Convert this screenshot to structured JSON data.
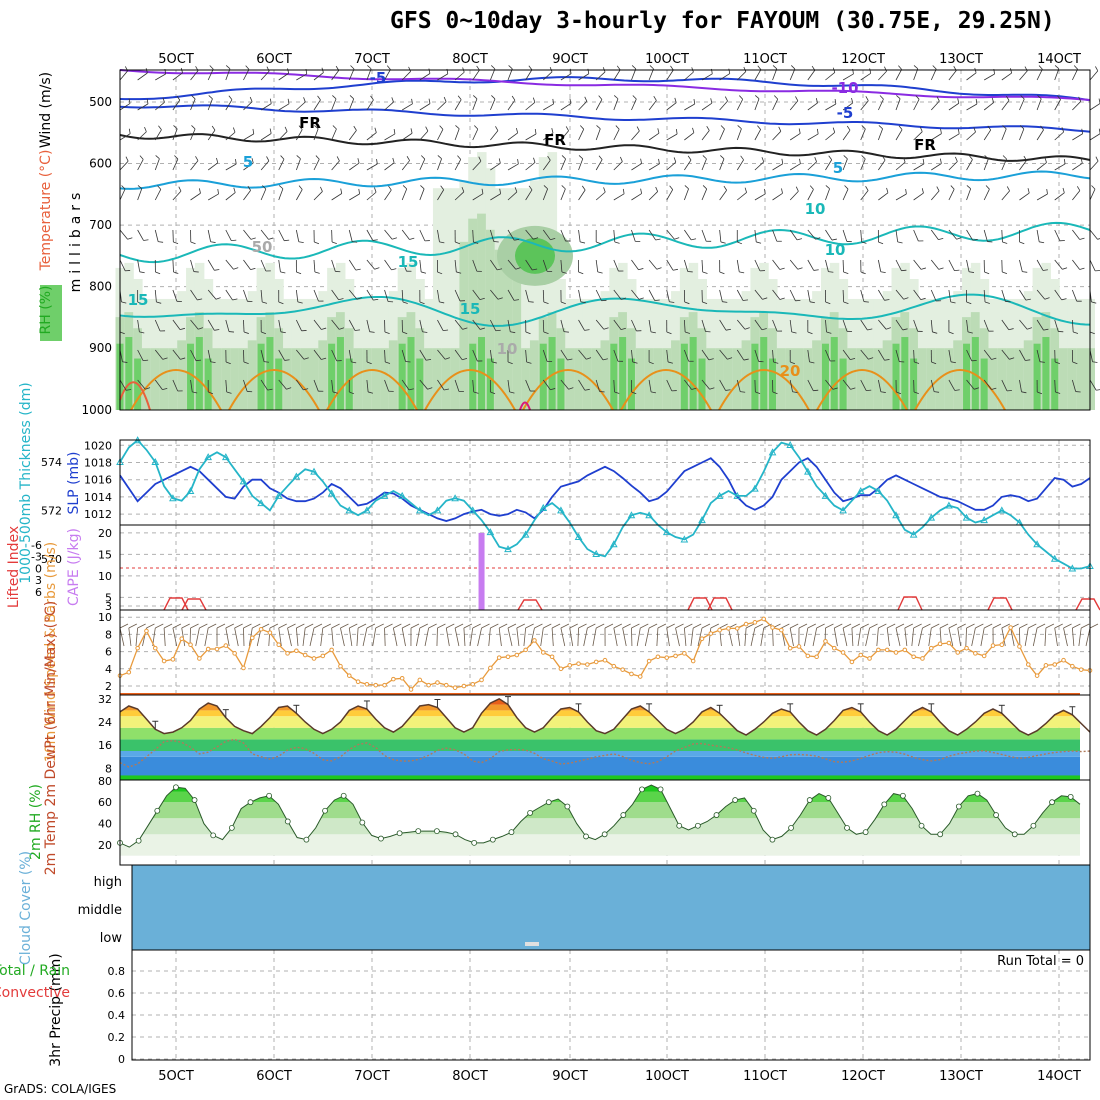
{
  "title": "GFS 0~10day 3-hourly for FAYOUM (30.75E, 29.25N)",
  "credit": "GrADS: COLA/IGES",
  "colors": {
    "wind_axis": "#000000",
    "temperature": "#e8603c",
    "rh": "#22aa22",
    "slp": "#1f3fcf",
    "thickness": "#25b5c8",
    "lifted_index": "#e33b3b",
    "cape": "#c77cf0",
    "wind10": "#e89a3c",
    "cloud": "#6ab0d8",
    "precip_total": "#22aa22",
    "precip_convective": "#e33b3b"
  },
  "chart_data": [
    {
      "panel": "upper-air",
      "type": "contour",
      "ylabel": "millibars",
      "ylabel_parts": [
        {
          "text": "RH (%)",
          "color": "rh"
        },
        {
          "text": "Temperature (°C)",
          "color": "temperature"
        },
        {
          "text": "Wind (m/s)",
          "color": "wind_axis"
        }
      ],
      "y_ticks": [
        "500",
        "600",
        "700",
        "800",
        "900",
        "1000"
      ],
      "x_ticks": [
        "5OCT",
        "6OCT",
        "7OCT",
        "8OCT",
        "9OCT",
        "10OCT",
        "11OCT",
        "12OCT",
        "13OCT",
        "14OCT"
      ],
      "contour_labels": [
        {
          "text": "-5",
          "color": "slp"
        },
        {
          "text": "-10",
          "color": "#8a2be2"
        },
        {
          "text": "-5",
          "color": "slp"
        },
        {
          "text": "FR",
          "color": "#000000"
        },
        {
          "text": "FR",
          "color": "#000000"
        },
        {
          "text": "FR",
          "color": "#000000"
        },
        {
          "text": "5",
          "color": "#1aa0d8"
        },
        {
          "text": "5",
          "color": "#1aa0d8"
        },
        {
          "text": "10",
          "color": "#1ab8b8"
        },
        {
          "text": "10",
          "color": "#1ab8b8"
        },
        {
          "text": "15",
          "color": "#1ab8b8"
        },
        {
          "text": "15",
          "color": "#1ab8b8"
        },
        {
          "text": "15",
          "color": "#1ab8b8"
        },
        {
          "text": "20",
          "color": "#e8901a"
        },
        {
          "text": "10",
          "color": "#aaaaaa"
        },
        {
          "text": "50",
          "color": "#aaaaaa"
        }
      ]
    },
    {
      "panel": "thickness-slp",
      "type": "line",
      "ylabel_left": "1000-500mb Thickness (dm)",
      "ylabel_right": "SLP (mb)",
      "left_ticks": [
        "574",
        "572",
        "570"
      ],
      "right_ticks": [
        "1020",
        "1018",
        "1016",
        "1014",
        "1012"
      ],
      "series": [
        {
          "name": "SLP (mb)",
          "color": "slp",
          "values": [
            1016.5,
            1015,
            1013.5,
            1014.5,
            1015.5,
            1016,
            1016.5,
            1017,
            1017.5,
            1017,
            1016,
            1015,
            1014,
            1013.8,
            1015.2,
            1016,
            1016,
            1015,
            1014.5,
            1013.8,
            1013.5,
            1013.5,
            1013.8,
            1014.5,
            1015.5,
            1015,
            1014,
            1013,
            1013.2,
            1013.8,
            1014.5,
            1014.4,
            1013.8,
            1013,
            1012.5,
            1012,
            1011.5,
            1011.2,
            1011.5,
            1012,
            1012.3,
            1012.5,
            1012,
            1011.8,
            1012,
            1012.5,
            1012.2,
            1011.5,
            1012.5,
            1014,
            1015.2,
            1015.5,
            1015.8,
            1016.5,
            1017,
            1017.5,
            1017,
            1016.2,
            1015.3,
            1014.5,
            1013.5,
            1013.8,
            1014.6,
            1015.8,
            1017,
            1017.5,
            1018,
            1018.5,
            1017.5,
            1016,
            1014,
            1013,
            1012.5,
            1013,
            1014,
            1016,
            1017,
            1018,
            1018.5,
            1017.5,
            1016,
            1014.5,
            1013.5,
            1013.8,
            1014.2,
            1014.2,
            1015,
            1016,
            1016.5,
            1016,
            1015.5,
            1015,
            1014.5,
            1014,
            1013.8,
            1013.5,
            1013,
            1012.5,
            1012.5,
            1013,
            1014,
            1014.2,
            1014,
            1013.5,
            1013.8,
            1015,
            1016.2,
            1016,
            1015.2,
            1015.5,
            1016.2
          ]
        },
        {
          "name": "1000-500mb Thickness (dm)",
          "color": "thickness",
          "values": [
            574,
            574.6,
            574.9,
            574.5,
            574,
            573,
            572.5,
            572.4,
            572.8,
            573.7,
            574.2,
            574.4,
            574.2,
            573.7,
            573.2,
            572.6,
            572.3,
            572,
            572.6,
            573,
            573.4,
            573.7,
            573.6,
            573.2,
            572.7,
            572.2,
            572,
            571.8,
            572,
            572.4,
            572.6,
            572.8,
            572.6,
            572.3,
            572,
            571.8,
            572,
            572.4,
            572.5,
            572.4,
            572,
            571.6,
            571.1,
            570.5,
            570.4,
            570.6,
            571,
            571.6,
            572.1,
            572.3,
            572,
            571.5,
            570.9,
            570.4,
            570.2,
            570.1,
            570.6,
            571.3,
            571.8,
            571.9,
            571.8,
            571.4,
            571.1,
            570.9,
            570.8,
            571,
            571.6,
            572.3,
            572.6,
            572.8,
            572.6,
            572.6,
            572.9,
            573.6,
            574.4,
            574.8,
            574.7,
            574.2,
            573.6,
            573,
            572.6,
            572.2,
            572,
            572.4,
            572.8,
            573,
            572.8,
            572.4,
            571.8,
            571.2,
            571,
            571.3,
            571.7,
            572,
            572.2,
            572.1,
            571.7,
            571.5,
            571.6,
            571.8,
            572,
            571.8,
            571.5,
            571,
            570.6,
            570.3,
            570,
            569.8,
            569.6,
            569.6,
            569.7
          ]
        }
      ]
    },
    {
      "panel": "stability",
      "type": "bar",
      "ylabel_left": "Lifted Index",
      "ylabel_right": "CAPE (J/kg)",
      "left_ticks": [
        "-6",
        "-3",
        "0",
        "3",
        "6"
      ],
      "right_ticks": [
        "20",
        "15",
        "10",
        "5",
        "3"
      ],
      "cape_bars": [
        {
          "x_index": 41,
          "value": 20
        }
      ],
      "lifted_index_series": [
        {
          "name": "Lifted Index",
          "color": "lifted_index",
          "note": "stays near 6 with small dips"
        }
      ]
    },
    {
      "panel": "wind10m",
      "type": "line",
      "ylabel": "10m Wind Speed & Barbs (m/s)",
      "y_ticks": [
        "10",
        "8",
        "6",
        "4",
        "2"
      ],
      "ylim": [
        1,
        10
      ],
      "series": [
        {
          "name": "10m Wind Speed",
          "color": "wind10",
          "values": [
            3.2,
            3.6,
            6.4,
            8.4,
            6.4,
            4.9,
            5.1,
            7.5,
            6.8,
            5.2,
            6.3,
            6.3,
            6.7,
            5.8,
            4.1,
            7.6,
            8.6,
            8.2,
            6.8,
            5.8,
            6.1,
            5.6,
            5.2,
            5.5,
            6.2,
            4.3,
            3.2,
            2.5,
            2.2,
            2.1,
            2.1,
            2.8,
            2.9,
            1.6,
            2.7,
            2.1,
            2.4,
            2.1,
            1.8,
            2,
            2.2,
            2.7,
            4.1,
            5.3,
            5.4,
            5.6,
            6.2,
            7.3,
            5.9,
            5.4,
            4,
            4.4,
            4.6,
            4.5,
            4.8,
            5,
            4.3,
            3.9,
            3.4,
            3.1,
            4.9,
            5.4,
            5.3,
            5.5,
            5.8,
            4.9,
            7.5,
            8.1,
            8.5,
            8.7,
            8.7,
            9.2,
            9.4,
            9.8,
            8.8,
            8.5,
            6.4,
            6.6,
            5.5,
            5.4,
            7.2,
            6.4,
            5.9,
            4.8,
            5.6,
            5.2,
            6.2,
            6.2,
            5.9,
            6.2,
            5.4,
            5.2,
            6.4,
            6.9,
            7,
            5.9,
            6.4,
            5.8,
            5.5,
            6.7,
            6.8,
            8.8,
            6.6,
            4.5,
            3.2,
            4.4,
            4.5,
            5,
            4.3,
            3.9,
            3.8
          ]
        }
      ]
    },
    {
      "panel": "temperature2m",
      "type": "area",
      "ylabel": "2m Temp 2m DewPt (6hr Min/Max) (°C)",
      "y_ticks": [
        "32",
        "24",
        "16",
        "8"
      ],
      "ylim": [
        5,
        34
      ],
      "series": [
        {
          "name": "2m Temp",
          "color": "#5a3a2a",
          "values": [
            27.5,
            29.5,
            28.5,
            25,
            21.5,
            20,
            20.5,
            22,
            24.5,
            28.5,
            30.5,
            29.5,
            25.5,
            22.5,
            21,
            20,
            22.5,
            25.5,
            29,
            29.5,
            27,
            24,
            21.5,
            20,
            21.5,
            24,
            28,
            29.5,
            28.5,
            25,
            22,
            20.5,
            22.5,
            26,
            29.5,
            30,
            29,
            25.5,
            22,
            20.5,
            22,
            27,
            30.5,
            32,
            30,
            25.5,
            22,
            20.5,
            22,
            25.5,
            28.5,
            29,
            27.5,
            24,
            21,
            20,
            21.5,
            25,
            28.5,
            29.5,
            27.5,
            24.5,
            21.5,
            20,
            21.5,
            24,
            27.5,
            29,
            27,
            24,
            21,
            19.5,
            21.5,
            24,
            27,
            28.5,
            27.5,
            24,
            21,
            19.5,
            21.5,
            24.5,
            28,
            29,
            27.5,
            24,
            21,
            19.5,
            21.5,
            24.5,
            27.5,
            29,
            27.5,
            24,
            21,
            19.5,
            21.5,
            24,
            27,
            28.5,
            27,
            24,
            21,
            19.5,
            21,
            23.5,
            26.5,
            28,
            26.5,
            23.5,
            20.5
          ]
        },
        {
          "name": "2m DewPt",
          "color": "#8a6a5a",
          "values": [
            10,
            8.5,
            9.5,
            12,
            14.5,
            17.2,
            17.6,
            17,
            15.3,
            13,
            13.6,
            15.4,
            17.3,
            18,
            16.8,
            13,
            12,
            11.2,
            12.2,
            14.3,
            15.3,
            14.8,
            13.2,
            11,
            10.6,
            12,
            14.5,
            16.2,
            16.8,
            15.2,
            12.4,
            11,
            10.5,
            10.6,
            11.2,
            12.5,
            14.2,
            15,
            14.4,
            13,
            10.5,
            10,
            11.3,
            13.8,
            14.4,
            14.5,
            14.3,
            13.2,
            11.3,
            10.5,
            9.5,
            9.8,
            10.5,
            11.2,
            12,
            12.5,
            13,
            12.1,
            10.8,
            10,
            9.6,
            10.3,
            12,
            14,
            15.2,
            16.4,
            16.6,
            16,
            15.6,
            15.1,
            14.4,
            13.3,
            12.5,
            11.8,
            11.5,
            12,
            12.7,
            12.8,
            12.6,
            12.2,
            11.3,
            10.3,
            10.1,
            10.6,
            11.4,
            12.5,
            13.4,
            13.8,
            13.6,
            12.9,
            11.8,
            11,
            10.6,
            11,
            12.2,
            13,
            13.5,
            14,
            14.1,
            13.5,
            12.8,
            12,
            11.5,
            11.8,
            12.4,
            13,
            13.5,
            13.8,
            14,
            13.8,
            14
          ]
        }
      ]
    },
    {
      "panel": "rh2m",
      "type": "area",
      "ylabel": "2m RH (%)",
      "y_ticks": [
        "80",
        "60",
        "40",
        "20"
      ],
      "ylim": [
        10,
        85
      ],
      "series": [
        {
          "name": "2m RH",
          "color": "rh",
          "values": [
            22,
            18,
            24,
            38,
            52,
            66,
            74,
            73,
            62,
            40,
            29,
            25,
            36,
            54,
            60,
            64,
            66,
            58,
            42,
            27,
            25,
            36,
            52,
            62,
            66,
            58,
            41,
            29,
            26,
            28,
            31,
            32,
            33,
            33,
            33,
            32,
            30,
            25,
            22,
            22,
            25,
            28,
            32,
            42,
            50,
            55,
            60,
            63,
            56,
            40,
            28,
            25,
            30,
            38,
            48,
            58,
            72,
            76,
            72,
            55,
            38,
            34,
            38,
            42,
            48,
            56,
            62,
            64,
            52,
            34,
            25,
            28,
            36,
            48,
            62,
            68,
            64,
            50,
            36,
            30,
            32,
            44,
            58,
            68,
            66,
            54,
            38,
            30,
            30,
            40,
            56,
            66,
            68,
            62,
            48,
            36,
            30,
            30,
            38,
            50,
            60,
            66,
            65,
            58
          ]
        }
      ]
    },
    {
      "panel": "cloud",
      "type": "heatmap",
      "ylabel": "Cloud Cover (%)",
      "y_ticks": [
        "high",
        "middle",
        "low"
      ]
    },
    {
      "panel": "precip",
      "type": "bar",
      "ylabel": "3hr Precip (mm)",
      "ylabel_parts": [
        {
          "text": "Total / Rain",
          "color": "precip_total"
        },
        {
          "text": "Convective",
          "color": "precip_convective"
        }
      ],
      "y_ticks": [
        "0.8",
        "0.6",
        "0.4",
        "0.2",
        "0"
      ],
      "ylim": [
        0,
        1
      ],
      "annotation": "Run Total = 0",
      "x_ticks": [
        "5OCT",
        "6OCT",
        "7OCT",
        "8OCT",
        "9OCT",
        "10OCT",
        "11OCT",
        "12OCT",
        "13OCT",
        "14OCT"
      ]
    }
  ]
}
